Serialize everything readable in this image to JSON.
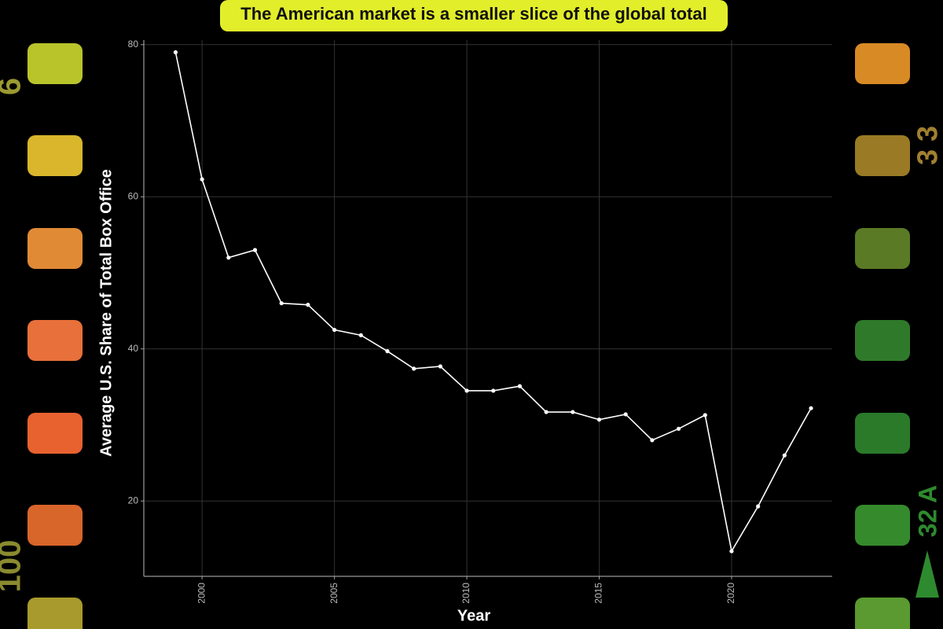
{
  "chart_data": {
    "type": "line",
    "title": "The American market is a smaller slice of the global total",
    "x_label": "Year",
    "y_label": "Average U.S. Share of Total Box Office",
    "x": [
      1999,
      2000,
      2001,
      2002,
      2003,
      2004,
      2005,
      2006,
      2007,
      2008,
      2009,
      2010,
      2011,
      2012,
      2013,
      2014,
      2015,
      2016,
      2017,
      2018,
      2019,
      2020,
      2021,
      2022,
      2023
    ],
    "values": [
      79,
      62.3,
      52,
      53,
      46,
      45.8,
      42.5,
      41.8,
      39.7,
      37.4,
      37.7,
      34.5,
      34.5,
      35.1,
      31.7,
      31.7,
      30.7,
      31.4,
      28,
      29.5,
      31.3,
      13.4,
      19.3,
      26,
      32.2
    ],
    "color": "#ffffff",
    "xlim": [
      1997.8,
      2023.8
    ],
    "xticks": [
      2000,
      2005,
      2010,
      2015,
      2020
    ],
    "ylim": [
      10.1,
      80.6
    ],
    "yticks": [
      20,
      40,
      60,
      80
    ],
    "grid": true
  },
  "film_edge_labels": [
    "6",
    "100",
    "3 3",
    "32 A"
  ]
}
